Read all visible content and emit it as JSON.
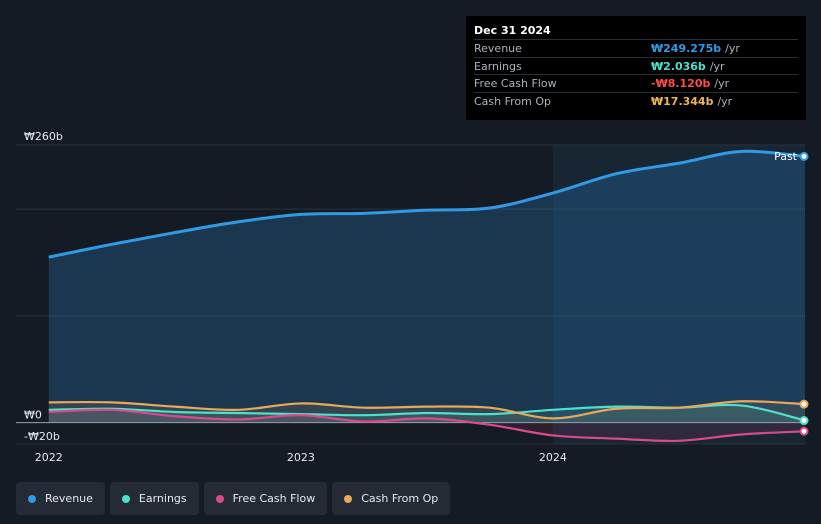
{
  "tooltip": {
    "date": "Dec 31 2024",
    "rows": [
      {
        "label": "Revenue",
        "value": "₩249.275b",
        "unit": "/yr",
        "color": "#2f9be7"
      },
      {
        "label": "Earnings",
        "value": "₩2.036b",
        "unit": "/yr",
        "color": "#4fe0cc"
      },
      {
        "label": "Free Cash Flow",
        "value": "-₩8.120b",
        "unit": "/yr",
        "color": "#ff4b4b"
      },
      {
        "label": "Cash From Op",
        "value": "₩17.344b",
        "unit": "/yr",
        "color": "#f0b25a"
      }
    ]
  },
  "legend": [
    {
      "label": "Revenue",
      "color": "#2f9be7"
    },
    {
      "label": "Earnings",
      "color": "#4fe0cc"
    },
    {
      "label": "Free Cash Flow",
      "color": "#d94a8c"
    },
    {
      "label": "Cash From Op",
      "color": "#e8a85a"
    }
  ],
  "chart_data": {
    "type": "line",
    "past_label": "Past",
    "y_ticks": [
      "₩260b",
      "₩0",
      "-₩20b"
    ],
    "ylim": [
      -20,
      260
    ],
    "x_ticks": [
      "2022",
      "2023",
      "2024"
    ],
    "x_tick_values": [
      2022.0,
      2023.0,
      2024.0
    ],
    "xlim": [
      2021.87,
      2025.0
    ],
    "past_start": 2024.0,
    "series": [
      {
        "name": "Revenue",
        "color": "#2f9be7",
        "x": [
          2022.0,
          2022.25,
          2022.5,
          2022.75,
          2023.0,
          2023.25,
          2023.5,
          2023.75,
          2024.0,
          2024.25,
          2024.5,
          2024.75,
          2025.0
        ],
        "y": [
          155,
          167,
          178,
          188,
          195,
          196,
          199,
          201,
          215,
          233,
          243,
          254,
          249.3
        ]
      },
      {
        "name": "Earnings",
        "color": "#4fe0cc",
        "x": [
          2022.0,
          2022.25,
          2022.5,
          2022.75,
          2023.0,
          2023.25,
          2023.5,
          2023.75,
          2024.0,
          2024.25,
          2024.5,
          2024.75,
          2025.0
        ],
        "y": [
          12,
          13,
          10,
          9,
          8,
          7,
          9,
          8,
          12,
          15,
          14,
          16,
          2.0
        ]
      },
      {
        "name": "Free Cash Flow",
        "color": "#d94a8c",
        "x": [
          2022.0,
          2022.25,
          2022.5,
          2022.75,
          2023.0,
          2023.25,
          2023.5,
          2023.75,
          2024.0,
          2024.25,
          2024.5,
          2024.75,
          2025.0
        ],
        "y": [
          10,
          12,
          6,
          3,
          7,
          1,
          4,
          -2,
          -12,
          -15,
          -17,
          -11,
          -8.1
        ]
      },
      {
        "name": "Cash From Op",
        "color": "#e8a85a",
        "x": [
          2022.0,
          2022.25,
          2022.5,
          2022.75,
          2023.0,
          2023.25,
          2023.5,
          2023.75,
          2024.0,
          2024.25,
          2024.5,
          2024.75,
          2025.0
        ],
        "y": [
          19,
          19,
          15,
          12,
          18,
          14,
          15,
          14,
          4,
          13,
          14,
          20,
          17.3
        ]
      }
    ]
  }
}
